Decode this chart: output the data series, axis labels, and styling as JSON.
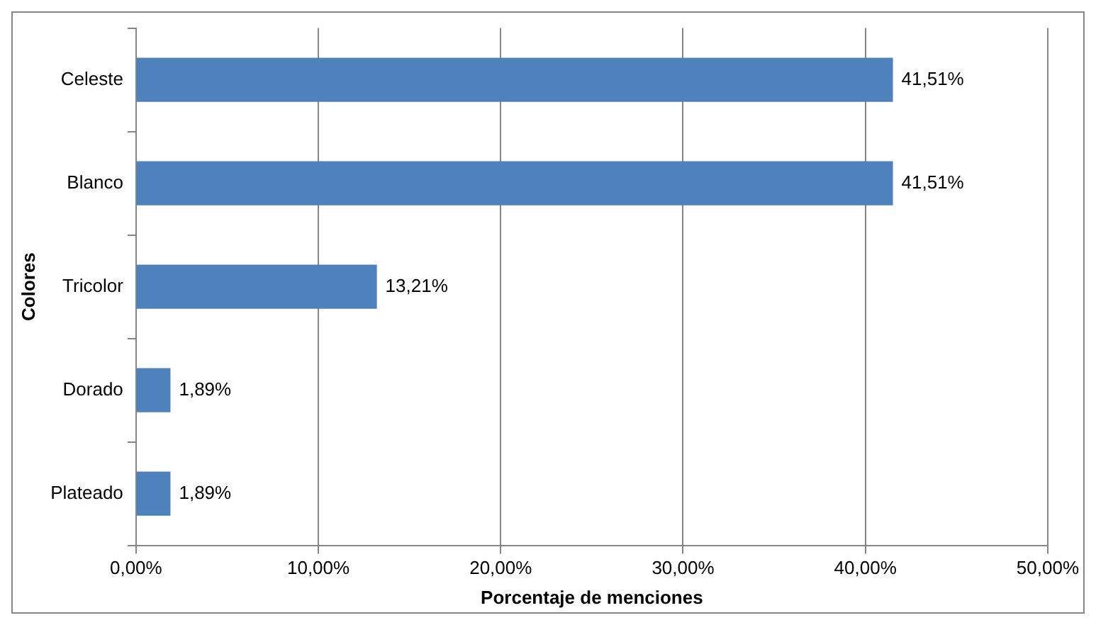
{
  "chart_data": {
    "type": "bar",
    "orientation": "horizontal",
    "xlabel": "Porcentaje de menciones",
    "ylabel": "Colores",
    "categories": [
      "Celeste",
      "Blanco",
      "Tricolor",
      "Dorado",
      "Plateado"
    ],
    "values": [
      41.51,
      41.51,
      13.21,
      1.89,
      1.89
    ],
    "value_labels": [
      "41,51%",
      "41,51%",
      "13,21%",
      "1,89%",
      "1,89%"
    ],
    "color": "#4f81bd",
    "xlim": [
      0,
      50
    ],
    "xticks": [
      {
        "value": 0,
        "label": "0,00%"
      },
      {
        "value": 10,
        "label": "10,00%"
      },
      {
        "value": 20,
        "label": "20,00%"
      },
      {
        "value": 30,
        "label": "30,00%"
      },
      {
        "value": 40,
        "label": "40,00%"
      },
      {
        "value": 50,
        "label": "50,00%"
      }
    ],
    "grid": "x",
    "legend": false
  }
}
